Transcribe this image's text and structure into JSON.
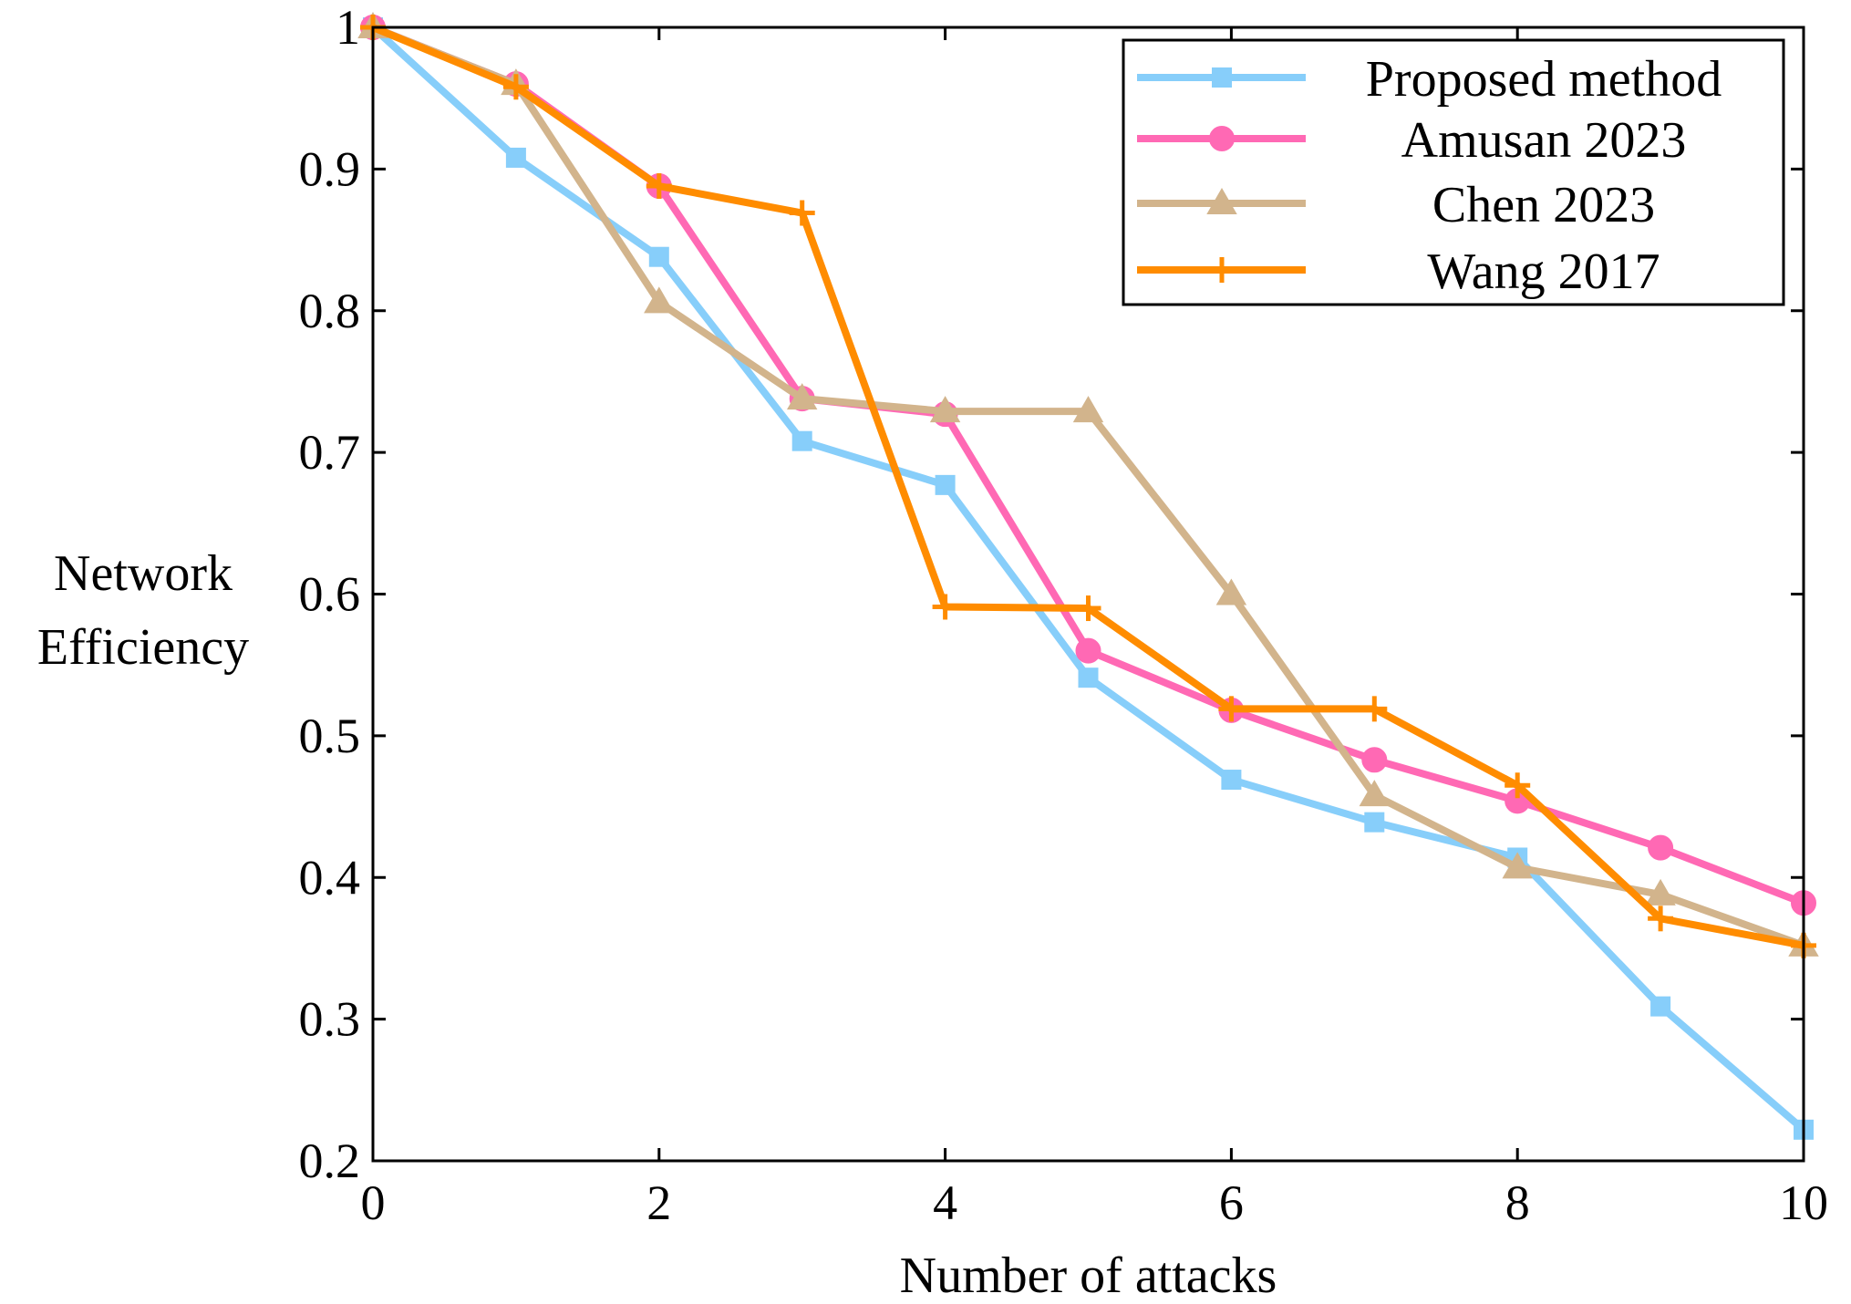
{
  "chart_data": {
    "type": "line",
    "title": "",
    "xlabel": "Number of attacks",
    "ylabel_lines": [
      "Network",
      "Efficiency"
    ],
    "xlim": [
      0,
      10
    ],
    "ylim": [
      0.2,
      1
    ],
    "xticks": [
      0,
      2,
      4,
      6,
      8,
      10
    ],
    "yticks": [
      0.2,
      0.3,
      0.4,
      0.5,
      0.6,
      0.7,
      0.8,
      0.9,
      1
    ],
    "ytick_labels": [
      "0.2",
      "0.3",
      "0.4",
      "0.5",
      "0.6",
      "0.7",
      "0.8",
      "0.9",
      "1"
    ],
    "xtick_labels": [
      "0",
      "2",
      "4",
      "6",
      "8",
      "10"
    ],
    "grid": false,
    "legend_position": "top-right",
    "x": [
      0,
      1,
      2,
      3,
      4,
      5,
      6,
      7,
      8,
      9,
      10
    ],
    "series": [
      {
        "name": "Proposed method",
        "color": "#87CEFA",
        "marker": "square",
        "values": [
          1.0,
          0.908,
          0.838,
          0.708,
          0.677,
          0.541,
          0.469,
          0.439,
          0.414,
          0.309,
          0.222
        ]
      },
      {
        "name": "Amusan 2023",
        "color": "#FF69B4",
        "marker": "circle",
        "values": [
          1.0,
          0.96,
          0.888,
          0.738,
          0.727,
          0.56,
          0.518,
          0.483,
          0.454,
          0.421,
          0.382
        ]
      },
      {
        "name": "Chen 2023",
        "color": "#D2B48C",
        "marker": "triangle",
        "values": [
          1.0,
          0.96,
          0.806,
          0.738,
          0.729,
          0.729,
          0.6,
          0.458,
          0.407,
          0.388,
          0.352
        ]
      },
      {
        "name": "Wang 2017",
        "color": "#FF8C00",
        "marker": "plus",
        "values": [
          1.0,
          0.958,
          0.888,
          0.869,
          0.591,
          0.59,
          0.519,
          0.519,
          0.465,
          0.371,
          0.352
        ]
      }
    ]
  }
}
